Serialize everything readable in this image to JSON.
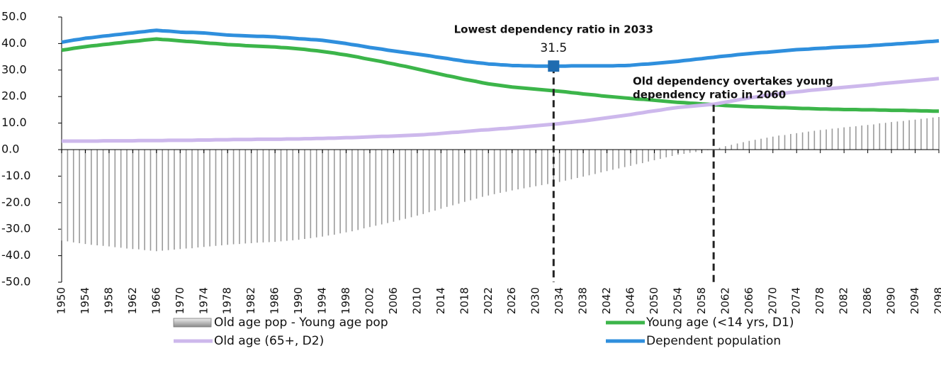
{
  "chart_data": {
    "type": "combo",
    "x": [
      1950,
      1951,
      1952,
      1953,
      1954,
      1955,
      1956,
      1957,
      1958,
      1959,
      1960,
      1961,
      1962,
      1963,
      1964,
      1965,
      1966,
      1967,
      1968,
      1969,
      1970,
      1971,
      1972,
      1973,
      1974,
      1975,
      1976,
      1977,
      1978,
      1979,
      1980,
      1981,
      1982,
      1983,
      1984,
      1985,
      1986,
      1987,
      1988,
      1989,
      1990,
      1991,
      1992,
      1993,
      1994,
      1995,
      1996,
      1997,
      1998,
      1999,
      2000,
      2001,
      2002,
      2003,
      2004,
      2005,
      2006,
      2007,
      2008,
      2009,
      2010,
      2011,
      2012,
      2013,
      2014,
      2015,
      2016,
      2017,
      2018,
      2019,
      2020,
      2021,
      2022,
      2023,
      2024,
      2025,
      2026,
      2027,
      2028,
      2029,
      2030,
      2031,
      2032,
      2033,
      2034,
      2035,
      2036,
      2037,
      2038,
      2039,
      2040,
      2041,
      2042,
      2043,
      2044,
      2045,
      2046,
      2047,
      2048,
      2049,
      2050,
      2051,
      2052,
      2053,
      2054,
      2055,
      2056,
      2057,
      2058,
      2059,
      2060,
      2061,
      2062,
      2063,
      2064,
      2065,
      2066,
      2067,
      2068,
      2069,
      2070,
      2071,
      2072,
      2073,
      2074,
      2075,
      2076,
      2077,
      2078,
      2079,
      2080,
      2081,
      2082,
      2083,
      2084,
      2085,
      2086,
      2087,
      2088,
      2089,
      2090,
      2091,
      2092,
      2093,
      2094,
      2095,
      2096,
      2097,
      2098
    ],
    "xlim": [
      1950,
      2098
    ],
    "xticks": [
      1950,
      1954,
      1958,
      1962,
      1966,
      1970,
      1974,
      1978,
      1982,
      1986,
      1990,
      1994,
      1998,
      2002,
      2006,
      2010,
      2014,
      2018,
      2022,
      2026,
      2030,
      2034,
      2038,
      2042,
      2046,
      2050,
      2054,
      2058,
      2062,
      2066,
      2070,
      2074,
      2078,
      2082,
      2086,
      2090,
      2094,
      2098
    ],
    "ylim": [
      -50,
      50
    ],
    "yticks": [
      {
        "value": -50,
        "label": "-50.0"
      },
      {
        "value": -40,
        "label": "-40.0"
      },
      {
        "value": -30,
        "label": "-30.0"
      },
      {
        "value": -20,
        "label": "-20.0"
      },
      {
        "value": -10,
        "label": "-10.0"
      },
      {
        "value": 0,
        "label": "0.0"
      },
      {
        "value": 10,
        "label": "10.0"
      },
      {
        "value": 20,
        "label": "20.0"
      },
      {
        "value": 30,
        "label": "30.0"
      },
      {
        "value": 40,
        "label": "40.0"
      },
      {
        "value": 50,
        "label": "50.0"
      }
    ],
    "series": [
      {
        "name": "Old age pop - Young age pop",
        "type": "bar",
        "color": "#9a9a9a",
        "values": [
          -34.3,
          -34.6,
          -35.0,
          -35.3,
          -35.6,
          -35.9,
          -36.1,
          -36.3,
          -36.5,
          -36.8,
          -37.0,
          -37.3,
          -37.5,
          -37.6,
          -37.9,
          -38.1,
          -38.3,
          -38.1,
          -37.9,
          -37.7,
          -37.5,
          -37.3,
          -37.2,
          -36.9,
          -36.7,
          -36.5,
          -36.3,
          -36.1,
          -35.9,
          -35.7,
          -35.6,
          -35.4,
          -35.3,
          -35.1,
          -35.0,
          -34.9,
          -34.8,
          -34.6,
          -34.4,
          -34.2,
          -34.0,
          -33.7,
          -33.4,
          -33.1,
          -32.8,
          -32.4,
          -32.1,
          -31.6,
          -31.2,
          -30.8,
          -30.3,
          -29.7,
          -29.2,
          -28.7,
          -28.2,
          -27.7,
          -27.2,
          -26.6,
          -26.1,
          -25.5,
          -24.9,
          -24.3,
          -23.6,
          -23.0,
          -22.3,
          -21.6,
          -21.0,
          -20.4,
          -19.7,
          -19.1,
          -18.5,
          -17.8,
          -17.3,
          -16.8,
          -16.3,
          -15.9,
          -15.4,
          -15.0,
          -14.6,
          -14.2,
          -13.8,
          -13.4,
          -13.0,
          -12.6,
          -12.2,
          -11.7,
          -11.2,
          -10.7,
          -10.2,
          -9.7,
          -9.2,
          -8.6,
          -8.1,
          -7.6,
          -7.1,
          -6.6,
          -6.1,
          -5.5,
          -5.1,
          -4.5,
          -4.0,
          -3.5,
          -2.9,
          -2.4,
          -1.9,
          -1.6,
          -1.2,
          -0.9,
          -0.5,
          -0.2,
          0.2,
          0.7,
          1.3,
          1.8,
          2.3,
          2.8,
          3.3,
          3.7,
          4.1,
          4.5,
          4.9,
          5.3,
          5.5,
          5.9,
          6.2,
          6.5,
          6.8,
          7.1,
          7.4,
          7.6,
          7.9,
          8.1,
          8.4,
          8.6,
          8.8,
          9.1,
          9.3,
          9.5,
          9.9,
          10.1,
          10.4,
          10.6,
          10.8,
          11.1,
          11.3,
          11.6,
          11.8,
          12.1,
          12.3
        ]
      },
      {
        "name": "Young age (<14 yrs, D1)",
        "type": "line",
        "color": "#3cb54a",
        "values": [
          37.5,
          37.8,
          38.2,
          38.5,
          38.8,
          39.1,
          39.3,
          39.6,
          39.8,
          40.1,
          40.3,
          40.6,
          40.8,
          41.0,
          41.3,
          41.5,
          41.7,
          41.5,
          41.4,
          41.2,
          41.0,
          40.8,
          40.7,
          40.5,
          40.3,
          40.1,
          40.0,
          39.8,
          39.6,
          39.5,
          39.4,
          39.2,
          39.1,
          39.0,
          38.9,
          38.8,
          38.7,
          38.5,
          38.4,
          38.2,
          38.0,
          37.8,
          37.5,
          37.3,
          37.0,
          36.7,
          36.4,
          36.0,
          35.7,
          35.3,
          34.9,
          34.4,
          34.0,
          33.6,
          33.2,
          32.7,
          32.3,
          31.8,
          31.4,
          30.9,
          30.4,
          29.9,
          29.4,
          28.9,
          28.4,
          27.9,
          27.5,
          27.0,
          26.5,
          26.1,
          25.7,
          25.2,
          24.8,
          24.5,
          24.2,
          23.9,
          23.6,
          23.4,
          23.2,
          23.0,
          22.8,
          22.6,
          22.4,
          22.2,
          22.0,
          21.8,
          21.5,
          21.3,
          21.0,
          20.8,
          20.6,
          20.3,
          20.1,
          19.9,
          19.7,
          19.5,
          19.3,
          19.1,
          19.0,
          18.8,
          18.6,
          18.4,
          18.2,
          18.0,
          17.8,
          17.7,
          17.5,
          17.4,
          17.2,
          17.1,
          16.9,
          16.8,
          16.6,
          16.5,
          16.4,
          16.3,
          16.2,
          16.1,
          16.1,
          16.0,
          15.9,
          15.8,
          15.8,
          15.7,
          15.6,
          15.5,
          15.5,
          15.4,
          15.3,
          15.3,
          15.2,
          15.2,
          15.1,
          15.1,
          15.1,
          15.0,
          15.0,
          15.0,
          14.9,
          14.9,
          14.8,
          14.8,
          14.8,
          14.7,
          14.7,
          14.6,
          14.6,
          14.5,
          14.5
        ]
      },
      {
        "name": "Old age (65+, D2)",
        "type": "line",
        "color": "#cdb8ec",
        "values": [
          3.2,
          3.2,
          3.2,
          3.2,
          3.2,
          3.2,
          3.2,
          3.3,
          3.3,
          3.3,
          3.3,
          3.3,
          3.3,
          3.4,
          3.4,
          3.4,
          3.4,
          3.4,
          3.5,
          3.5,
          3.5,
          3.5,
          3.5,
          3.6,
          3.6,
          3.6,
          3.7,
          3.7,
          3.7,
          3.8,
          3.8,
          3.8,
          3.8,
          3.9,
          3.9,
          3.9,
          3.9,
          3.9,
          4.0,
          4.0,
          4.0,
          4.1,
          4.1,
          4.2,
          4.2,
          4.3,
          4.3,
          4.4,
          4.5,
          4.5,
          4.6,
          4.7,
          4.8,
          4.9,
          5.0,
          5.0,
          5.1,
          5.2,
          5.3,
          5.4,
          5.5,
          5.6,
          5.8,
          5.9,
          6.1,
          6.3,
          6.5,
          6.6,
          6.8,
          7.0,
          7.2,
          7.4,
          7.5,
          7.7,
          7.9,
          8.0,
          8.2,
          8.4,
          8.6,
          8.8,
          9.0,
          9.2,
          9.4,
          9.6,
          9.8,
          10.1,
          10.3,
          10.6,
          10.8,
          11.1,
          11.4,
          11.7,
          12.0,
          12.3,
          12.6,
          12.9,
          13.2,
          13.6,
          13.9,
          14.3,
          14.6,
          14.9,
          15.3,
          15.6,
          15.9,
          16.1,
          16.3,
          16.5,
          16.7,
          16.9,
          17.1,
          17.5,
          17.9,
          18.3,
          18.7,
          19.1,
          19.5,
          19.8,
          20.2,
          20.5,
          20.8,
          21.1,
          21.3,
          21.6,
          21.8,
          22.0,
          22.3,
          22.5,
          22.7,
          22.9,
          23.1,
          23.3,
          23.5,
          23.7,
          23.9,
          24.1,
          24.3,
          24.5,
          24.8,
          25.0,
          25.2,
          25.4,
          25.6,
          25.8,
          26.0,
          26.2,
          26.4,
          26.6,
          26.8
        ]
      },
      {
        "name": "Dependent population",
        "type": "line",
        "color": "#2f8fdd",
        "values": [
          40.5,
          40.9,
          41.3,
          41.6,
          42.0,
          42.2,
          42.5,
          42.8,
          43.0,
          43.3,
          43.5,
          43.8,
          44.0,
          44.3,
          44.5,
          44.8,
          45.0,
          44.8,
          44.7,
          44.5,
          44.3,
          44.2,
          44.2,
          44.1,
          44.0,
          43.8,
          43.6,
          43.4,
          43.2,
          43.1,
          43.0,
          42.9,
          42.8,
          42.7,
          42.7,
          42.6,
          42.5,
          42.3,
          42.2,
          42.0,
          41.8,
          41.7,
          41.5,
          41.4,
          41.2,
          40.9,
          40.6,
          40.3,
          40.0,
          39.6,
          39.3,
          38.9,
          38.5,
          38.2,
          37.9,
          37.5,
          37.2,
          36.9,
          36.6,
          36.3,
          36.0,
          35.7,
          35.4,
          35.0,
          34.7,
          34.4,
          34.0,
          33.7,
          33.3,
          33.1,
          32.8,
          32.6,
          32.3,
          32.2,
          32.0,
          31.9,
          31.7,
          31.7,
          31.6,
          31.6,
          31.5,
          31.5,
          31.5,
          31.5,
          31.5,
          31.5,
          31.6,
          31.6,
          31.6,
          31.6,
          31.6,
          31.6,
          31.6,
          31.6,
          31.7,
          31.7,
          31.8,
          32.0,
          32.2,
          32.3,
          32.5,
          32.7,
          32.9,
          33.1,
          33.3,
          33.6,
          33.8,
          34.1,
          34.3,
          34.6,
          34.8,
          35.1,
          35.3,
          35.5,
          35.8,
          36.0,
          36.2,
          36.4,
          36.6,
          36.7,
          36.9,
          37.1,
          37.3,
          37.5,
          37.7,
          37.8,
          37.9,
          38.1,
          38.2,
          38.3,
          38.5,
          38.6,
          38.7,
          38.8,
          38.9,
          39.0,
          39.1,
          39.3,
          39.4,
          39.6,
          39.7,
          39.9,
          40.0,
          40.2,
          40.3,
          40.5,
          40.7,
          40.8,
          41.0
        ]
      }
    ],
    "annotations": [
      {
        "text": "Lowest dependency ratio in 2033",
        "x": 2033,
        "value": 31.5,
        "color": "#1f6cb0"
      },
      {
        "lines": [
          "Old dependency overtakes young",
          "dependency ratio in 2060"
        ],
        "x": 2060
      }
    ]
  }
}
